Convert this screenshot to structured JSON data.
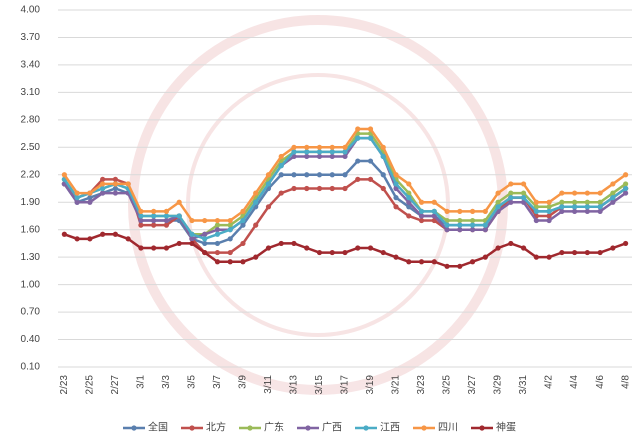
{
  "chart_data": {
    "type": "line",
    "categories": [
      "2/23",
      null,
      "2/25",
      null,
      "2/27",
      null,
      "3/1",
      null,
      "3/3",
      null,
      "3/5",
      null,
      "3/7",
      null,
      "3/9",
      null,
      "3/11",
      null,
      "3/13",
      null,
      "3/15",
      null,
      "3/17",
      null,
      "3/19",
      null,
      "3/21",
      null,
      "3/23",
      null,
      "3/25",
      null,
      "3/27",
      null,
      "3/29",
      null,
      "3/31",
      null,
      "4/2",
      null,
      "4/4",
      null,
      "4/6",
      null,
      "4/8"
    ],
    "series": [
      {
        "name": "全国",
        "color": "#5a7fae",
        "values": [
          2.1,
          1.9,
          1.95,
          2.0,
          2.05,
          2.0,
          1.7,
          1.7,
          1.7,
          1.7,
          1.5,
          1.45,
          1.45,
          1.5,
          1.65,
          1.85,
          2.05,
          2.2,
          2.2,
          2.2,
          2.2,
          2.2,
          2.2,
          2.35,
          2.35,
          2.2,
          1.95,
          1.85,
          1.75,
          1.75,
          1.65,
          1.65,
          1.65,
          1.65,
          1.85,
          1.95,
          1.95,
          1.8,
          1.8,
          1.85,
          1.85,
          1.85,
          1.85,
          1.95,
          2.05
        ]
      },
      {
        "name": "北方",
        "color": "#c0504d",
        "values": [
          2.1,
          1.95,
          2.0,
          2.15,
          2.15,
          2.1,
          1.65,
          1.65,
          1.65,
          1.75,
          1.5,
          1.35,
          1.35,
          1.35,
          1.45,
          1.65,
          1.85,
          2.0,
          2.05,
          2.05,
          2.05,
          2.05,
          2.05,
          2.15,
          2.15,
          2.05,
          1.85,
          1.75,
          1.7,
          1.7,
          1.6,
          1.6,
          1.6,
          1.6,
          1.8,
          1.95,
          1.95,
          1.75,
          1.75,
          1.85,
          1.85,
          1.85,
          1.85,
          1.95,
          2.05
        ]
      },
      {
        "name": "广东",
        "color": "#9bbb59",
        "values": [
          2.15,
          1.95,
          2.0,
          2.05,
          2.1,
          2.05,
          1.75,
          1.75,
          1.75,
          1.75,
          1.55,
          1.55,
          1.65,
          1.65,
          1.75,
          1.95,
          2.15,
          2.35,
          2.45,
          2.45,
          2.45,
          2.45,
          2.45,
          2.65,
          2.65,
          2.45,
          2.15,
          2.0,
          1.8,
          1.8,
          1.7,
          1.7,
          1.7,
          1.7,
          1.9,
          2.0,
          2.0,
          1.85,
          1.85,
          1.9,
          1.9,
          1.9,
          1.9,
          2.0,
          2.1
        ]
      },
      {
        "name": "广西",
        "color": "#8064a2",
        "values": [
          2.1,
          1.9,
          1.9,
          2.0,
          2.0,
          2.0,
          1.7,
          1.7,
          1.7,
          1.75,
          1.5,
          1.55,
          1.6,
          1.6,
          1.7,
          1.9,
          2.1,
          2.3,
          2.4,
          2.4,
          2.4,
          2.4,
          2.4,
          2.6,
          2.6,
          2.4,
          2.05,
          1.9,
          1.75,
          1.75,
          1.6,
          1.6,
          1.6,
          1.6,
          1.8,
          1.9,
          1.9,
          1.7,
          1.7,
          1.8,
          1.8,
          1.8,
          1.8,
          1.9,
          2.0
        ]
      },
      {
        "name": "江西",
        "color": "#4bacc6",
        "values": [
          2.15,
          1.95,
          2.0,
          2.05,
          2.1,
          2.05,
          1.75,
          1.75,
          1.75,
          1.75,
          1.55,
          1.5,
          1.55,
          1.6,
          1.7,
          1.9,
          2.1,
          2.3,
          2.45,
          2.45,
          2.45,
          2.45,
          2.45,
          2.6,
          2.6,
          2.4,
          2.1,
          1.95,
          1.8,
          1.8,
          1.65,
          1.65,
          1.65,
          1.65,
          1.85,
          1.95,
          1.95,
          1.8,
          1.8,
          1.85,
          1.85,
          1.85,
          1.85,
          1.95,
          2.05
        ]
      },
      {
        "name": "四川",
        "color": "#f79646",
        "values": [
          2.2,
          2.0,
          2.0,
          2.1,
          2.1,
          2.1,
          1.8,
          1.8,
          1.8,
          1.9,
          1.7,
          1.7,
          1.7,
          1.7,
          1.8,
          2.0,
          2.2,
          2.4,
          2.5,
          2.5,
          2.5,
          2.5,
          2.5,
          2.7,
          2.7,
          2.5,
          2.2,
          2.1,
          1.9,
          1.9,
          1.8,
          1.8,
          1.8,
          1.8,
          2.0,
          2.1,
          2.1,
          1.9,
          1.9,
          2.0,
          2.0,
          2.0,
          2.0,
          2.1,
          2.2
        ]
      },
      {
        "name": "神蛋",
        "color": "#a0282e",
        "values": [
          1.55,
          1.5,
          1.5,
          1.55,
          1.55,
          1.5,
          1.4,
          1.4,
          1.4,
          1.45,
          1.45,
          1.35,
          1.25,
          1.25,
          1.25,
          1.3,
          1.4,
          1.45,
          1.45,
          1.4,
          1.35,
          1.35,
          1.35,
          1.4,
          1.4,
          1.35,
          1.3,
          1.25,
          1.25,
          1.25,
          1.2,
          1.2,
          1.25,
          1.3,
          1.4,
          1.45,
          1.4,
          1.3,
          1.3,
          1.35,
          1.35,
          1.35,
          1.35,
          1.4,
          1.45
        ]
      }
    ],
    "ylim": [
      0.1,
      4.0
    ],
    "yticks": [
      {
        "value": 0.1,
        "label": "0.10"
      },
      {
        "value": 0.4,
        "label": "0.40"
      },
      {
        "value": 0.7,
        "label": "0.70"
      },
      {
        "value": 1.0,
        "label": "1.00"
      },
      {
        "value": 1.3,
        "label": "1.30"
      },
      {
        "value": 1.6,
        "label": "1.60"
      },
      {
        "value": 1.9,
        "label": "1.90"
      },
      {
        "value": 2.2,
        "label": "2.20"
      },
      {
        "value": 2.5,
        "label": "2.50"
      },
      {
        "value": 2.8,
        "label": "2.80"
      },
      {
        "value": 3.1,
        "label": "3.10"
      },
      {
        "value": 3.4,
        "label": "3.40"
      },
      {
        "value": 3.7,
        "label": "3.70"
      },
      {
        "value": 4.0,
        "label": "4.00"
      }
    ],
    "grid": true,
    "legend": "bottom"
  }
}
